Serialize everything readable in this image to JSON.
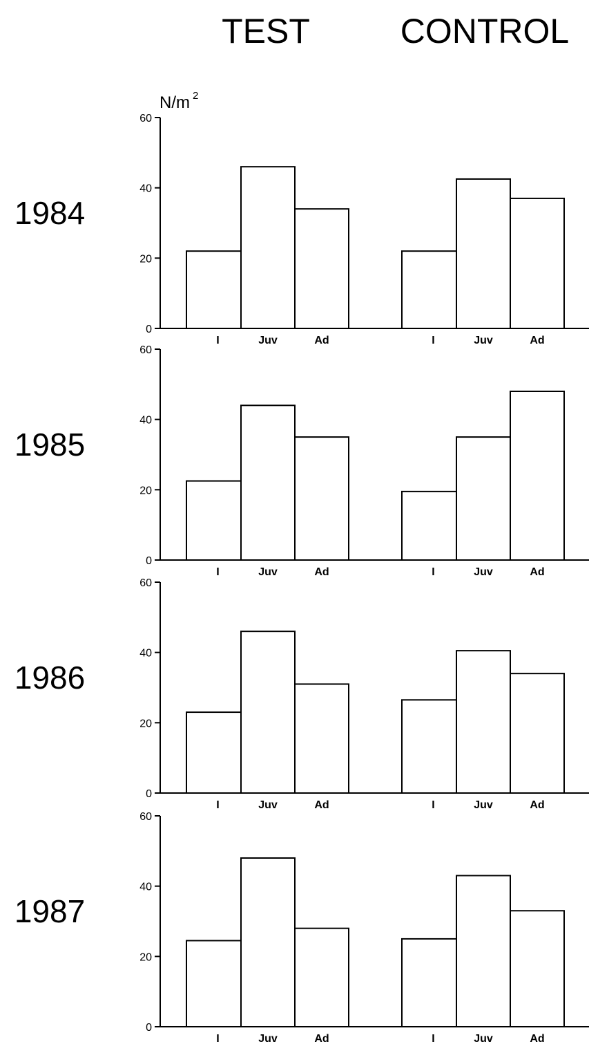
{
  "chart_data": {
    "type": "bar",
    "group_titles": [
      "TEST",
      "CONTROL"
    ],
    "unit_base": "N/m",
    "unit_exp": "2",
    "ylim": [
      0,
      60
    ],
    "yticks": [
      "0",
      "20",
      "40",
      "60"
    ],
    "categories": [
      "I",
      "Juv",
      "Ad"
    ],
    "grid": false,
    "panels": [
      {
        "year": "1984",
        "series": [
          {
            "group": "TEST",
            "values": [
              22,
              46,
              34
            ]
          },
          {
            "group": "CONTROL",
            "values": [
              22,
              42.5,
              37
            ]
          }
        ]
      },
      {
        "year": "1985",
        "series": [
          {
            "group": "TEST",
            "values": [
              22.5,
              44,
              35
            ]
          },
          {
            "group": "CONTROL",
            "values": [
              19.5,
              35,
              48
            ]
          }
        ]
      },
      {
        "year": "1986",
        "series": [
          {
            "group": "TEST",
            "values": [
              23,
              46,
              31
            ]
          },
          {
            "group": "CONTROL",
            "values": [
              26.5,
              40.5,
              34
            ]
          }
        ]
      },
      {
        "year": "1987",
        "series": [
          {
            "group": "TEST",
            "values": [
              24.5,
              48,
              28
            ]
          },
          {
            "group": "CONTROL",
            "values": [
              25,
              43,
              33
            ]
          }
        ]
      }
    ]
  }
}
